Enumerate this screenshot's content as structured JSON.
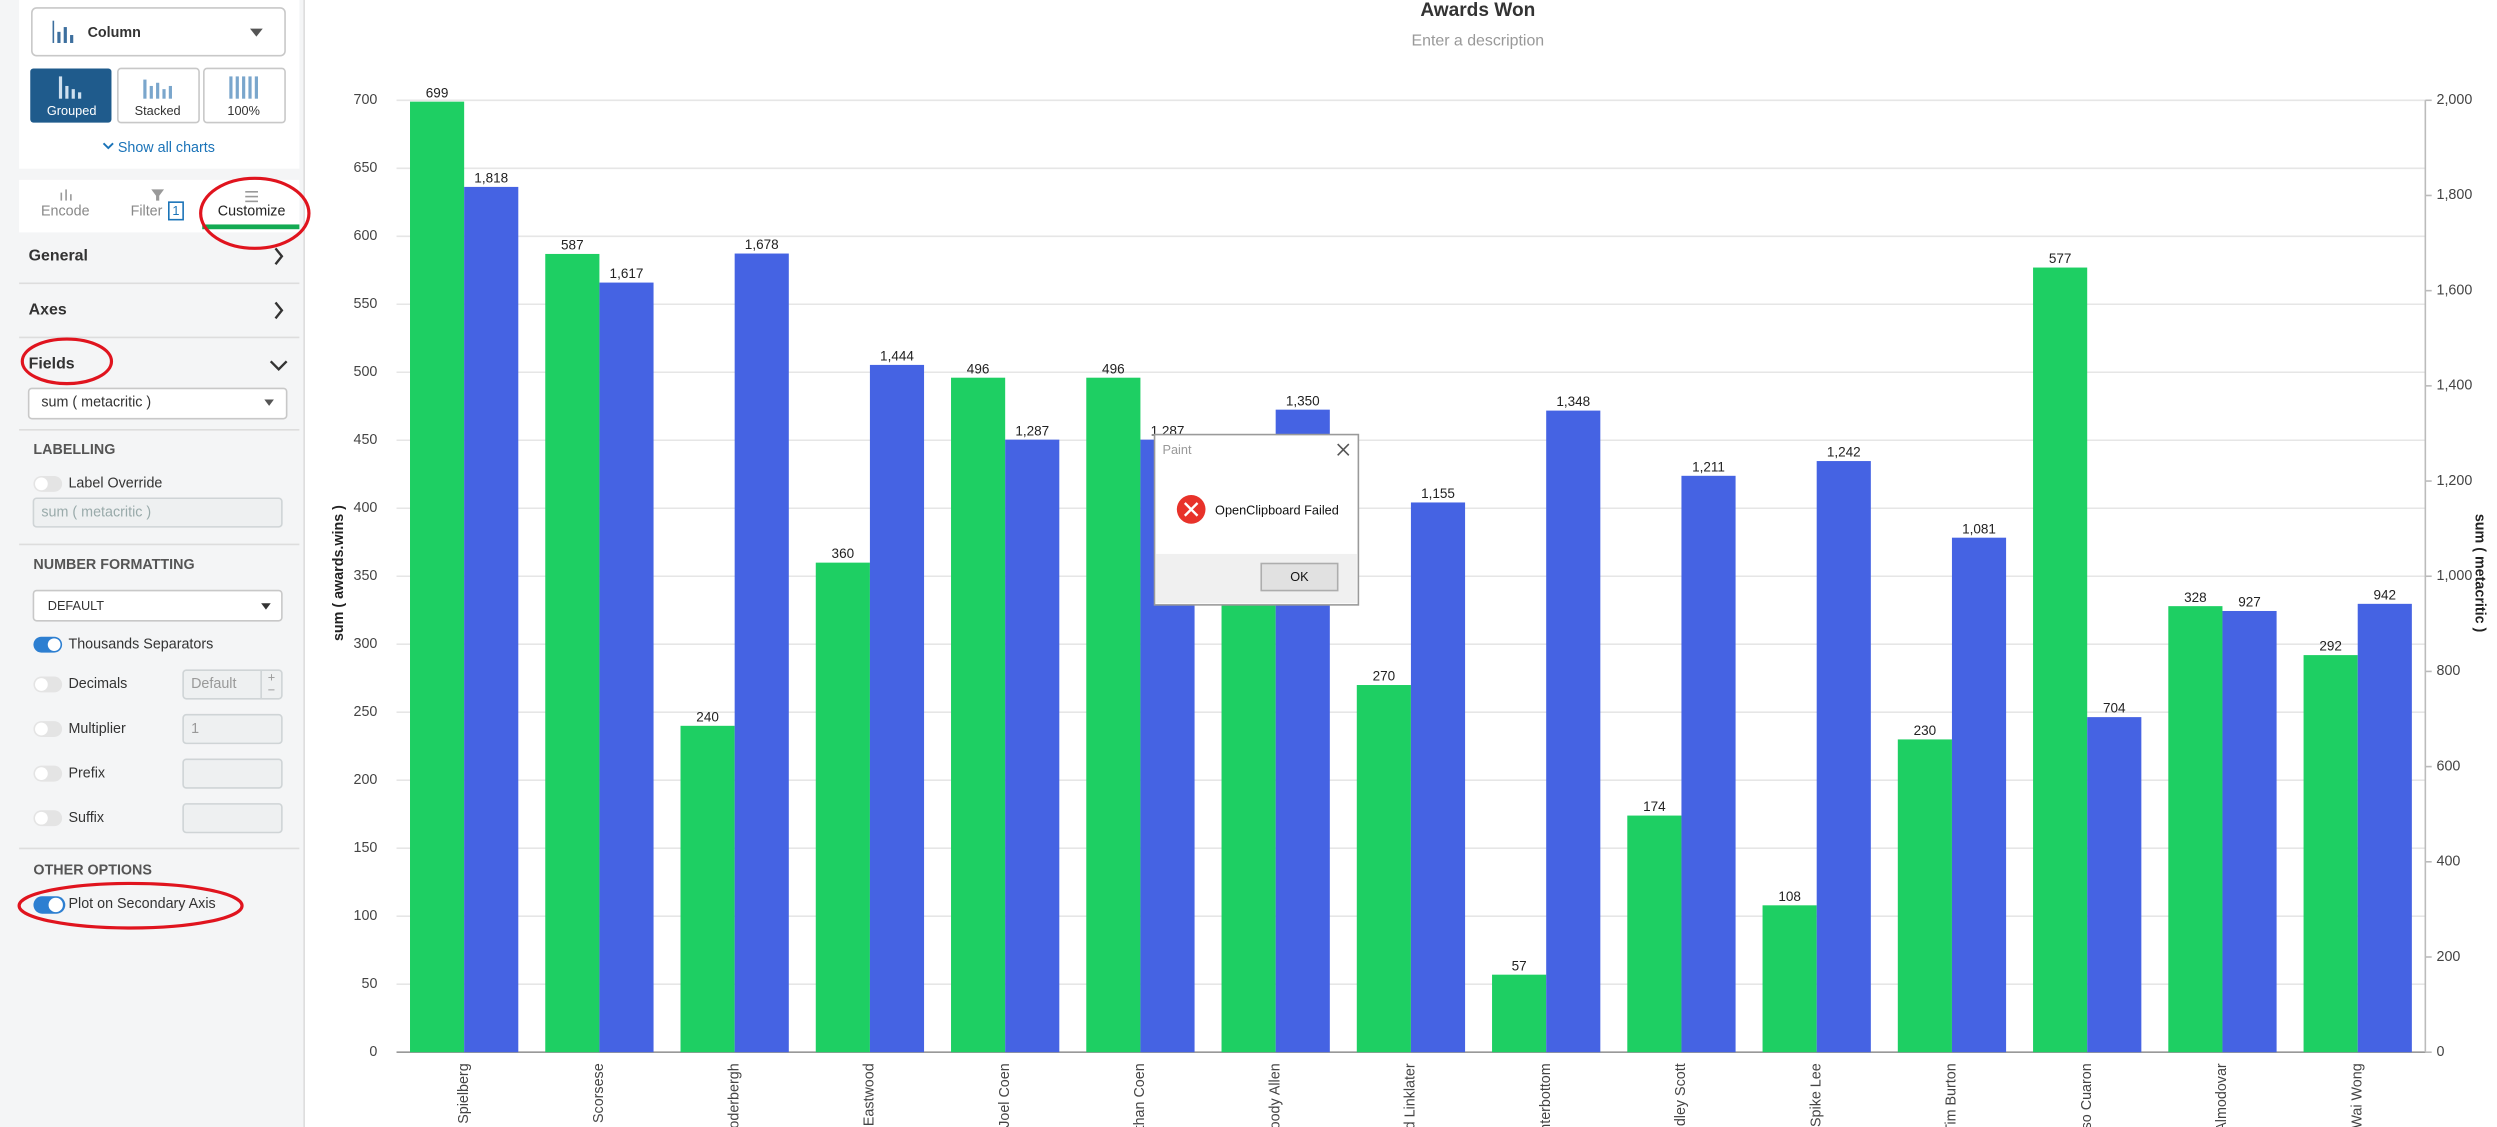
{
  "sidebar": {
    "chart_type": "Column",
    "layouts": [
      "Grouped",
      "Stacked",
      "100%"
    ],
    "show_all": "Show all charts",
    "tabs": [
      "Encode",
      "Filter",
      "Customize"
    ],
    "filter_count": "1",
    "sections": [
      "General",
      "Axes",
      "Fields"
    ],
    "field": "sum ( metacritic )",
    "labelling": {
      "heading": "LABELLING",
      "label_override": "Label Override",
      "placeholder": "sum ( metacritic )"
    },
    "number_formatting": {
      "heading": "NUMBER FORMATTING",
      "format": "DEFAULT",
      "thousands": "Thousands Separators",
      "decimals": "Decimals",
      "decimals_value": "Default",
      "multiplier": "Multiplier",
      "multiplier_value": "1",
      "prefix": "Prefix",
      "suffix": "Suffix"
    },
    "other_options": {
      "heading": "OTHER OPTIONS",
      "secondary_axis": "Plot on Secondary Axis"
    }
  },
  "chart_data": {
    "type": "bar",
    "title": "Awards Won",
    "subtitle": "Enter a description",
    "categories": [
      "n Spielberg",
      "n Scorsese",
      "Soderbergh",
      "t Eastwood",
      "Joel Coen",
      "Ethan Coen",
      "oody Allen",
      "rd Linklater",
      "interbottom",
      "idley Scott",
      "Spike Lee",
      "Tim Burton",
      "nso Cuaron",
      "Almodovar",
      "Wai Wong"
    ],
    "series": [
      {
        "color": "#1ecf63",
        "values": [
          699,
          587,
          240,
          360,
          496,
          496,
          400,
          270,
          57,
          174,
          108,
          230,
          577,
          328,
          292
        ]
      },
      {
        "color": "#4563e3",
        "axis": "y2",
        "values": [
          1818,
          1617,
          1678,
          1444,
          1287,
          1287,
          1350,
          1155,
          1348,
          1211,
          1242,
          1081,
          704,
          927,
          942
        ],
        "value_labels": [
          "1,818",
          "1,617",
          "1,678",
          "1,444",
          "1,287",
          "1,287",
          "1,350",
          "1,155",
          "1,348",
          "1,211",
          "1,242",
          "1,081",
          "704",
          "927",
          "942"
        ]
      }
    ],
    "ylabel": "sum ( awards.wins )",
    "y2label": "sum ( metacritic )",
    "ylim": [
      0,
      700
    ],
    "yticks": [
      0,
      50,
      100,
      150,
      200,
      250,
      300,
      350,
      400,
      450,
      500,
      550,
      600,
      650,
      700
    ],
    "y2lim": [
      0,
      2000
    ],
    "y2ticks": [
      0,
      200,
      400,
      600,
      800,
      {
        "value": 1000,
        "label": "1,000"
      },
      {
        "value": 1200,
        "label": "1,200"
      },
      {
        "value": 1400,
        "label": "1,400"
      },
      {
        "value": 1600,
        "label": "1,600"
      },
      {
        "value": 1800,
        "label": "1,800"
      },
      {
        "value": 2000,
        "label": "2,000"
      }
    ],
    "grid": true
  },
  "dialog": {
    "title": "Paint",
    "message": "OpenClipboard Failed",
    "button": "OK"
  }
}
